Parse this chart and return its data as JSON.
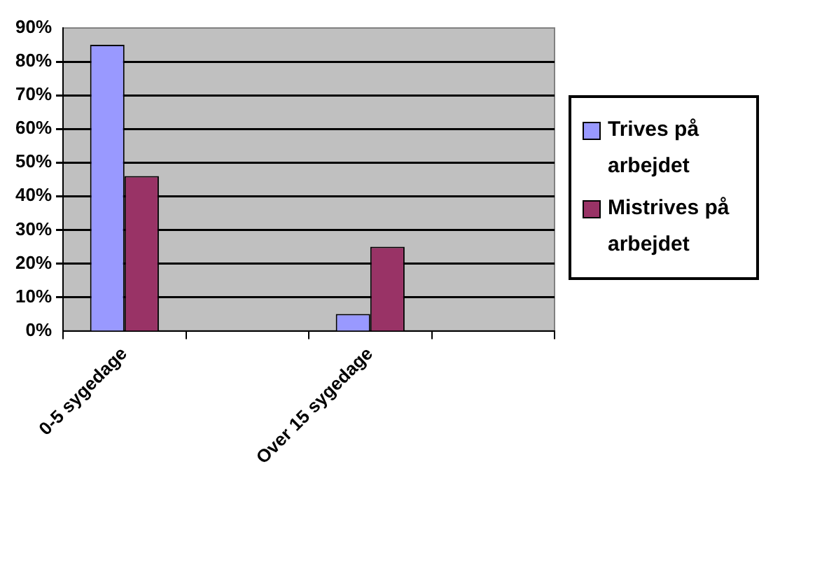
{
  "chart_data": {
    "type": "bar",
    "categories": [
      "0-5 sygedage",
      null,
      "Over 15 sygedage",
      null
    ],
    "series": [
      {
        "name": "Trives på arbejdet",
        "color": "#9999ff",
        "values": [
          85,
          null,
          5,
          null
        ]
      },
      {
        "name": "Mistrives på arbejdet",
        "color": "#993366",
        "values": [
          46,
          null,
          25,
          null
        ]
      }
    ],
    "ylim": [
      0,
      90
    ],
    "yticks": [
      {
        "value": 0,
        "label": "0%"
      },
      {
        "value": 10,
        "label": "10%"
      },
      {
        "value": 20,
        "label": "20%"
      },
      {
        "value": 30,
        "label": "30%"
      },
      {
        "value": 40,
        "label": "40%"
      },
      {
        "value": 50,
        "label": "50%"
      },
      {
        "value": 60,
        "label": "60%"
      },
      {
        "value": 70,
        "label": "70%"
      },
      {
        "value": 80,
        "label": "80%"
      },
      {
        "value": 90,
        "label": "90%"
      }
    ],
    "grid": "y",
    "legend": "right"
  }
}
